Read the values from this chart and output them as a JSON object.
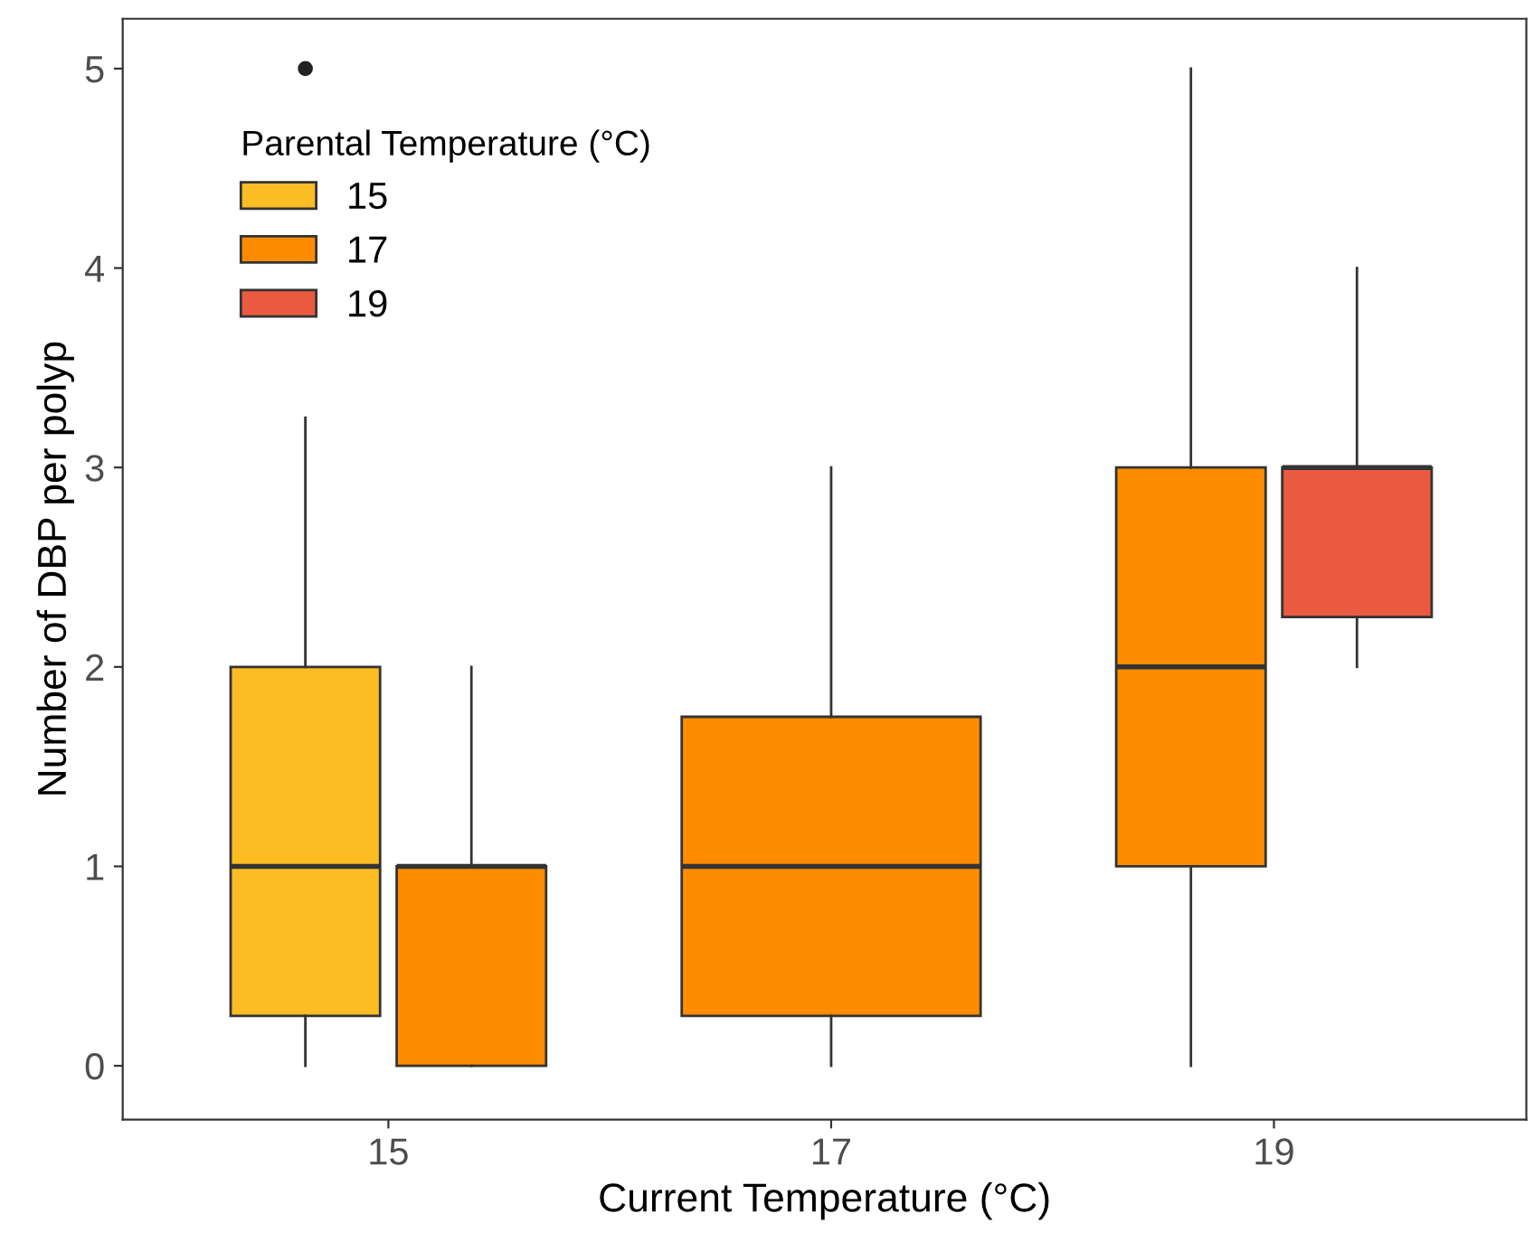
{
  "chart_data": {
    "type": "box",
    "xlabel": "Current Temperature (°C)",
    "ylabel": "Number of DBP per polyp",
    "legend_title": "Parental Temperature (°C)",
    "legend": "top left",
    "grid": false,
    "categories": [
      "15",
      "17",
      "19"
    ],
    "ylim": [
      -0.27,
      5.25
    ],
    "yticks": [
      0,
      1,
      2,
      3,
      4,
      5
    ],
    "series": [
      {
        "name": "15",
        "color": "#fbbc24",
        "boxes": [
          {
            "low": 0,
            "q1": 0.25,
            "median": 1,
            "q3": 2,
            "high": 3.25,
            "outliers": [
              5
            ]
          },
          null,
          null
        ]
      },
      {
        "name": "17",
        "color": "#ff8c00",
        "boxes": [
          {
            "low": 0,
            "q1": 0,
            "median": 1,
            "q3": 1,
            "high": 2
          },
          {
            "low": 0,
            "q1": 0.25,
            "median": 1,
            "q3": 1.75,
            "high": 3
          },
          {
            "low": 0,
            "q1": 1,
            "median": 2,
            "q3": 3,
            "high": 5
          }
        ]
      },
      {
        "name": "19",
        "color": "#eb5a40",
        "boxes": [
          null,
          null,
          {
            "low": 2,
            "q1": 2.25,
            "median": 3,
            "q3": 3,
            "high": 4
          }
        ]
      }
    ]
  }
}
